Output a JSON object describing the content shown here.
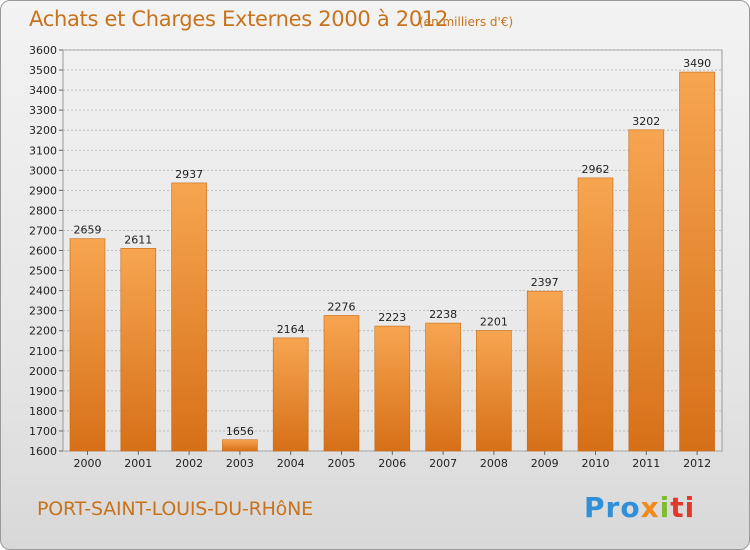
{
  "header": {
    "title": "Achats et Charges Externes 2000 à 2012",
    "unit": "(en milliers d'€)"
  },
  "footer": {
    "town": "PORT-SAINT-LOUIS-DU-RHôNE",
    "logo": [
      "Pro",
      "x",
      "i",
      "ti"
    ]
  },
  "colors": {
    "bar_light": "#f6a24a",
    "bar_dark": "#d9741c",
    "text_accent": "#c8731c"
  },
  "chart_data": {
    "type": "bar",
    "title": "Achats et Charges Externes 2000 à 2012",
    "subtitle": "(en milliers d'€)",
    "categories": [
      "2000",
      "2001",
      "2002",
      "2003",
      "2004",
      "2005",
      "2006",
      "2007",
      "2008",
      "2009",
      "2010",
      "2011",
      "2012"
    ],
    "values": [
      2659,
      2611,
      2937,
      1656,
      2164,
      2276,
      2223,
      2238,
      2201,
      2397,
      2962,
      3202,
      3490
    ],
    "ylim": [
      1600,
      3600
    ],
    "yticks": [
      1600,
      1700,
      1800,
      1900,
      2000,
      2100,
      2200,
      2300,
      2400,
      2500,
      2600,
      2700,
      2800,
      2900,
      3000,
      3100,
      3200,
      3300,
      3400,
      3500,
      3600
    ],
    "grid": true,
    "legend": "none"
  }
}
